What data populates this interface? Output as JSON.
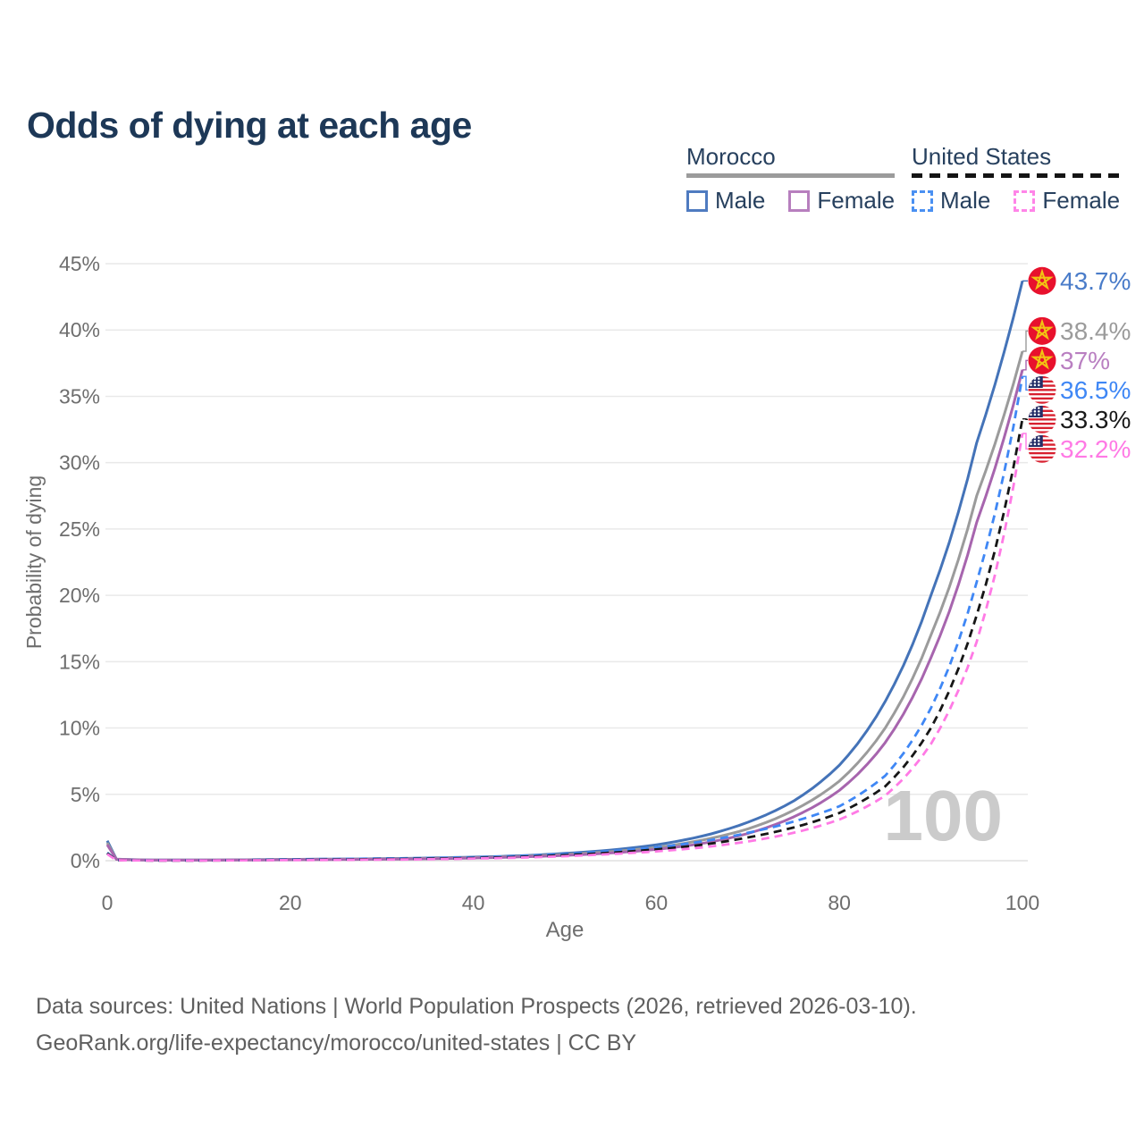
{
  "title": "Odds of dying at each age",
  "legend": {
    "morocco": {
      "label": "Morocco",
      "style": "solid",
      "underline_color": "#9b9b9b",
      "male_label": "Male",
      "female_label": "Female",
      "male_box_color": "#4f7bc0",
      "female_box_color": "#b77fbe"
    },
    "united_states": {
      "label": "United States",
      "style": "dashed",
      "underline_color": "#141414",
      "male_label": "Male",
      "female_label": "Female",
      "male_box_color": "#4a90f2",
      "female_box_color": "#ff85e8"
    }
  },
  "chart_data": {
    "type": "line",
    "title": "Odds of dying at each age",
    "xlabel": "Age",
    "ylabel": "Probability of dying",
    "xlim": [
      0,
      100
    ],
    "ylim": [
      0,
      45
    ],
    "xticks": [
      0,
      20,
      40,
      60,
      80,
      100
    ],
    "yticks": [
      0,
      5,
      10,
      15,
      20,
      25,
      30,
      35,
      40,
      45
    ],
    "ytick_suffix": "%",
    "grid": true,
    "legend_position": "top-right",
    "watermark": "100",
    "ages": [
      0,
      1,
      5,
      10,
      15,
      20,
      25,
      30,
      35,
      40,
      45,
      50,
      55,
      60,
      65,
      70,
      75,
      80,
      85,
      90,
      95,
      100
    ],
    "series": [
      {
        "id": "morocco-male",
        "name": "Morocco Male",
        "country": "Morocco",
        "sex": "male",
        "flag": "morocco",
        "color": "#4473b8",
        "dash": null,
        "end_label": "43.7%",
        "end_value": 43.7,
        "label_color": "#4a7cc9",
        "values": [
          1.5,
          0.12,
          0.05,
          0.05,
          0.07,
          0.1,
          0.12,
          0.15,
          0.2,
          0.27,
          0.37,
          0.55,
          0.8,
          1.2,
          1.85,
          2.9,
          4.5,
          7.2,
          12.0,
          20.0,
          31.5,
          43.7
        ]
      },
      {
        "id": "morocco-both",
        "name": "Morocco Both sexes",
        "country": "Morocco",
        "sex": "both",
        "flag": "morocco",
        "color": "#9b9b9b",
        "dash": null,
        "end_label": "38.4%",
        "end_value": 38.4,
        "label_color": "#9b9b9b",
        "values": [
          1.35,
          0.11,
          0.045,
          0.045,
          0.06,
          0.09,
          0.1,
          0.13,
          0.17,
          0.23,
          0.32,
          0.47,
          0.68,
          1.0,
          1.55,
          2.4,
          3.8,
          6.0,
          10.0,
          17.0,
          27.5,
          38.4
        ]
      },
      {
        "id": "morocco-female",
        "name": "Morocco Female",
        "country": "Morocco",
        "sex": "female",
        "flag": "morocco",
        "color": "#a765ae",
        "dash": null,
        "end_label": "37%",
        "end_value": 37.0,
        "label_color": "#b97fc1",
        "values": [
          1.2,
          0.1,
          0.04,
          0.04,
          0.05,
          0.07,
          0.09,
          0.11,
          0.14,
          0.2,
          0.28,
          0.4,
          0.58,
          0.85,
          1.3,
          2.05,
          3.3,
          5.3,
          8.9,
          15.3,
          25.5,
          37.0
        ]
      },
      {
        "id": "us-male",
        "name": "United States Male",
        "country": "United States",
        "sex": "male",
        "flag": "us",
        "color": "#3f87f5",
        "dash": "9 6",
        "end_label": "36.5%",
        "end_value": 36.5,
        "label_color": "#3f87f5",
        "values": [
          0.6,
          0.04,
          0.02,
          0.02,
          0.05,
          0.1,
          0.13,
          0.16,
          0.2,
          0.25,
          0.35,
          0.5,
          0.72,
          1.0,
          1.45,
          2.1,
          2.95,
          4.1,
          6.4,
          11.5,
          21.0,
          36.5
        ]
      },
      {
        "id": "us-both",
        "name": "United States Both sexes",
        "country": "United States",
        "sex": "both",
        "flag": "us",
        "color": "#161616",
        "dash": "9 6",
        "end_label": "33.3%",
        "end_value": 33.3,
        "label_color": "#1a1a1a",
        "values": [
          0.55,
          0.04,
          0.015,
          0.015,
          0.04,
          0.07,
          0.09,
          0.12,
          0.15,
          0.2,
          0.28,
          0.42,
          0.6,
          0.85,
          1.2,
          1.75,
          2.5,
          3.6,
          5.6,
          10.0,
          18.5,
          33.3
        ]
      },
      {
        "id": "us-female",
        "name": "United States Female",
        "country": "United States",
        "sex": "female",
        "flag": "us",
        "color": "#ff7ae5",
        "dash": "9 6",
        "end_label": "32.2%",
        "end_value": 32.2,
        "label_color": "#ff7ae5",
        "values": [
          0.5,
          0.035,
          0.012,
          0.012,
          0.03,
          0.045,
          0.06,
          0.08,
          0.11,
          0.16,
          0.23,
          0.34,
          0.5,
          0.7,
          1.0,
          1.45,
          2.1,
          3.1,
          4.9,
          8.8,
          16.5,
          32.2
        ]
      }
    ]
  },
  "footer": {
    "line1": "Data sources: United Nations | World Population Prospects (2026, retrieved 2026-03-10).",
    "line2": "GeoRank.org/life-expectancy/morocco/united-states | CC BY"
  }
}
